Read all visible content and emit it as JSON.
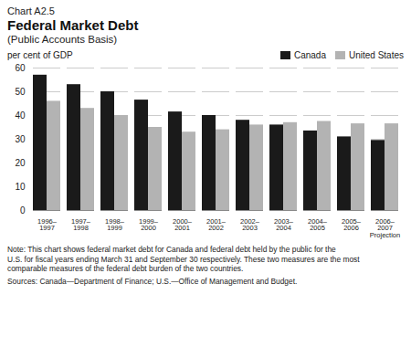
{
  "chart_data": {
    "type": "bar",
    "chart_label": "Chart A2.5",
    "title": "Federal Market Debt",
    "subtitle": "(Public Accounts Basis)",
    "ylabel": "per cent of GDP",
    "categories": [
      "1996–\n1997",
      "1997–\n1998",
      "1998–\n1999",
      "1999–\n2000",
      "2000–\n2001",
      "2001–\n2002",
      "2002–\n2003",
      "2003–\n2004",
      "2004–\n2005",
      "2005–\n2006",
      "2006–\n2007\nProjection"
    ],
    "series": [
      {
        "name": "Canada",
        "color": "#1a1a1a",
        "values": [
          57.0,
          53.0,
          50.0,
          46.5,
          41.5,
          40.0,
          38.0,
          36.0,
          33.5,
          31.0,
          29.5
        ]
      },
      {
        "name": "United States",
        "color": "#b3b3b3",
        "values": [
          46.0,
          43.0,
          40.0,
          35.0,
          33.0,
          34.0,
          36.0,
          37.0,
          37.5,
          36.5,
          36.5
        ]
      }
    ],
    "ylim": [
      0,
      60
    ],
    "yticks": [
      0,
      10,
      20,
      30,
      40,
      50,
      60
    ],
    "grid": true,
    "legend": "upper right",
    "annotations": [
      "Note: This chart shows federal market debt for Canada and federal debt held by the public for the",
      "U.S. for fiscal years ending March 31 and September 30 respectively. These two measures are the most",
      "comparable measures of the federal debt burden of the two countries.",
      "Sources: Canada—Department of Finance; U.S.—Office of Management and Budget."
    ]
  }
}
